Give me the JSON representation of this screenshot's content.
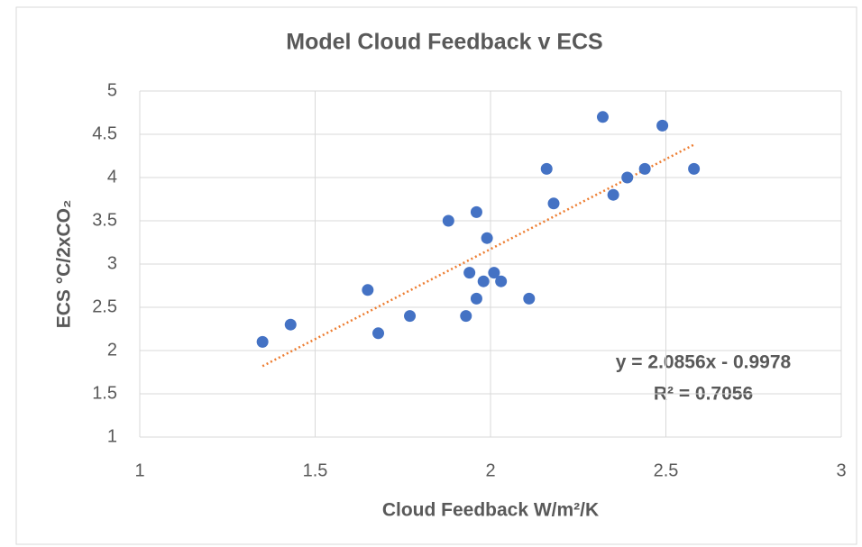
{
  "chart_data": {
    "type": "scatter",
    "title": "Model Cloud Feedback v ECS",
    "x_label": "Cloud Feedback W/m²/K",
    "y_label": "ECS °C/2xCO₂",
    "series": [
      {
        "color": "#4472c4",
        "x": [
          1.35,
          1.43,
          1.65,
          1.68,
          1.77,
          1.88,
          1.96,
          1.99,
          1.94,
          1.98,
          2.01,
          2.03,
          1.96,
          1.93,
          2.11,
          2.16,
          2.18,
          2.32,
          2.35,
          2.39,
          2.44,
          2.49,
          2.58
        ],
        "values": [
          2.1,
          2.3,
          2.7,
          2.2,
          2.4,
          3.5,
          3.6,
          3.3,
          2.9,
          2.8,
          2.9,
          2.8,
          2.6,
          2.4,
          2.6,
          4.1,
          3.7,
          4.7,
          3.8,
          4.0,
          4.1,
          4.6,
          4.1
        ]
      }
    ],
    "trendline": {
      "color": "#ed7d31",
      "x": [
        1.35,
        2.58
      ],
      "values": [
        1.82,
        4.38
      ]
    },
    "annotations": [
      "y = 2.0856x - 0.9978",
      "R² = 0.7056"
    ],
    "xlim": [
      1,
      3
    ],
    "xticks": [
      1,
      1.5,
      2,
      2.5,
      3
    ],
    "ylim": [
      1,
      5
    ],
    "yticks": [
      1,
      1.5,
      2,
      2.5,
      3,
      3.5,
      4,
      4.5,
      5
    ],
    "grid": true
  }
}
